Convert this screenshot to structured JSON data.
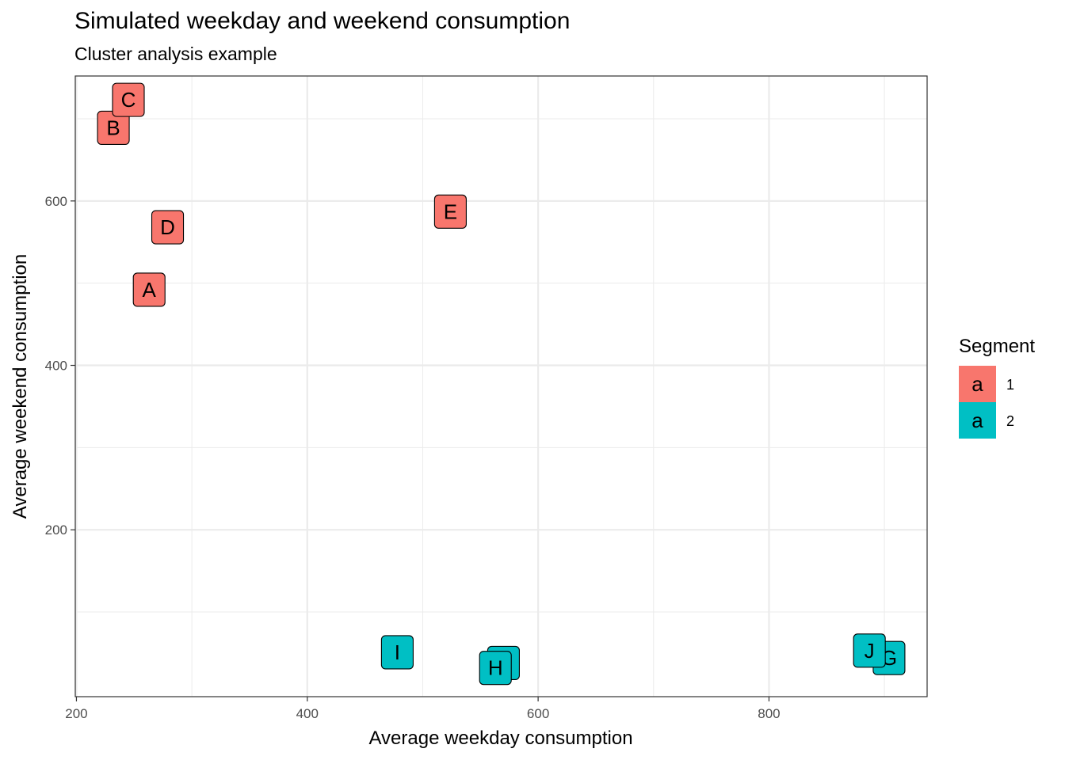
{
  "chart_data": {
    "type": "scatter",
    "title": "Simulated weekday and weekend consumption",
    "subtitle": "Cluster analysis example",
    "xlabel": "Average weekday consumption",
    "ylabel": "Average weekend consumption",
    "xlim": [
      199,
      937
    ],
    "ylim": [
      -3,
      752
    ],
    "x_ticks": [
      200,
      400,
      600,
      800
    ],
    "x_tick_labels": [
      "200",
      "400",
      "600",
      "800"
    ],
    "y_ticks": [
      200,
      400,
      600
    ],
    "y_tick_labels": [
      "200",
      "400",
      "600"
    ],
    "x_minor": [
      300,
      500,
      700,
      900
    ],
    "y_minor": [
      100,
      300,
      500,
      700
    ],
    "grid": true,
    "legend": {
      "title": "Segment",
      "position": "right",
      "key_glyph": "a",
      "entries": [
        {
          "label": "1",
          "color": "#F8766D"
        },
        {
          "label": "2",
          "color": "#00BFC4"
        }
      ]
    },
    "points": [
      {
        "label": "A",
        "x": 263,
        "y": 492,
        "segment": "1"
      },
      {
        "label": "B",
        "x": 232,
        "y": 689,
        "segment": "1"
      },
      {
        "label": "C",
        "x": 245,
        "y": 723,
        "segment": "1"
      },
      {
        "label": "D",
        "x": 279,
        "y": 568,
        "segment": "1"
      },
      {
        "label": "E",
        "x": 524,
        "y": 587,
        "segment": "1"
      },
      {
        "label": "F",
        "x": 570,
        "y": 38,
        "segment": "2"
      },
      {
        "label": "G",
        "x": 904,
        "y": 44,
        "segment": "2"
      },
      {
        "label": "H",
        "x": 563,
        "y": 32,
        "segment": "2"
      },
      {
        "label": "I",
        "x": 478,
        "y": 51,
        "segment": "2"
      },
      {
        "label": "J",
        "x": 887,
        "y": 53,
        "segment": "2"
      }
    ]
  }
}
